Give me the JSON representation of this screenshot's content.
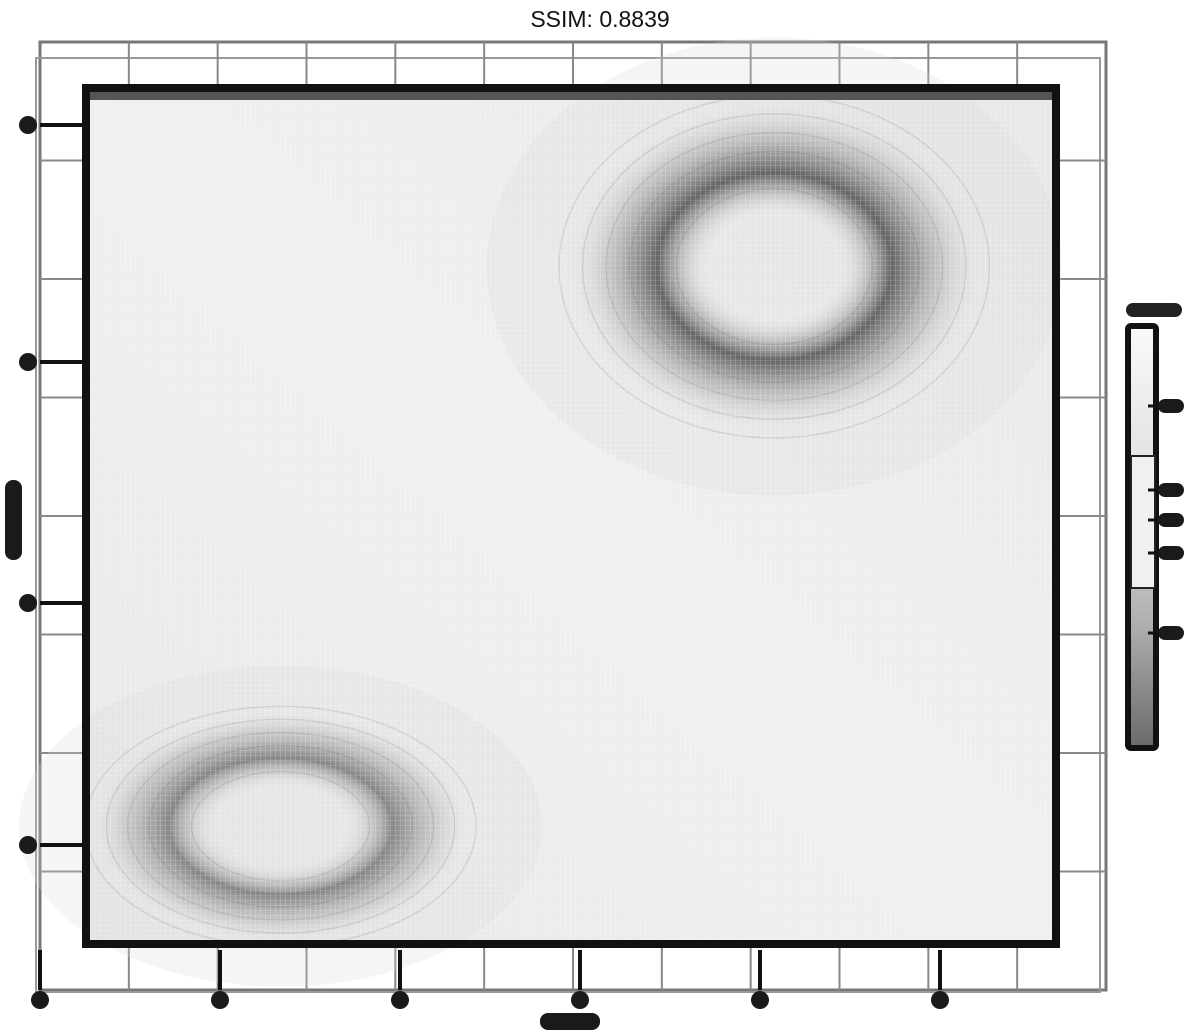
{
  "chart_data": {
    "type": "heatmap",
    "title": "SSIM: 0.8839",
    "grid": true,
    "legend_position": "right",
    "colors": {
      "background": "#ffffff",
      "frame": "#111111",
      "grid": "#777777",
      "field": "#f4f4f4",
      "density_dark": "#3a3a3a"
    },
    "x_ticks": 6,
    "y_ticks": 4,
    "legend_ticks": 4,
    "density_peaks": [
      {
        "x": 0.71,
        "y": 0.8,
        "spread_x": 0.22,
        "spread_y": 0.2,
        "ring": true
      },
      {
        "x": 0.2,
        "y": 0.14,
        "spread_x": 0.2,
        "spread_y": 0.14,
        "ring": true
      }
    ]
  }
}
